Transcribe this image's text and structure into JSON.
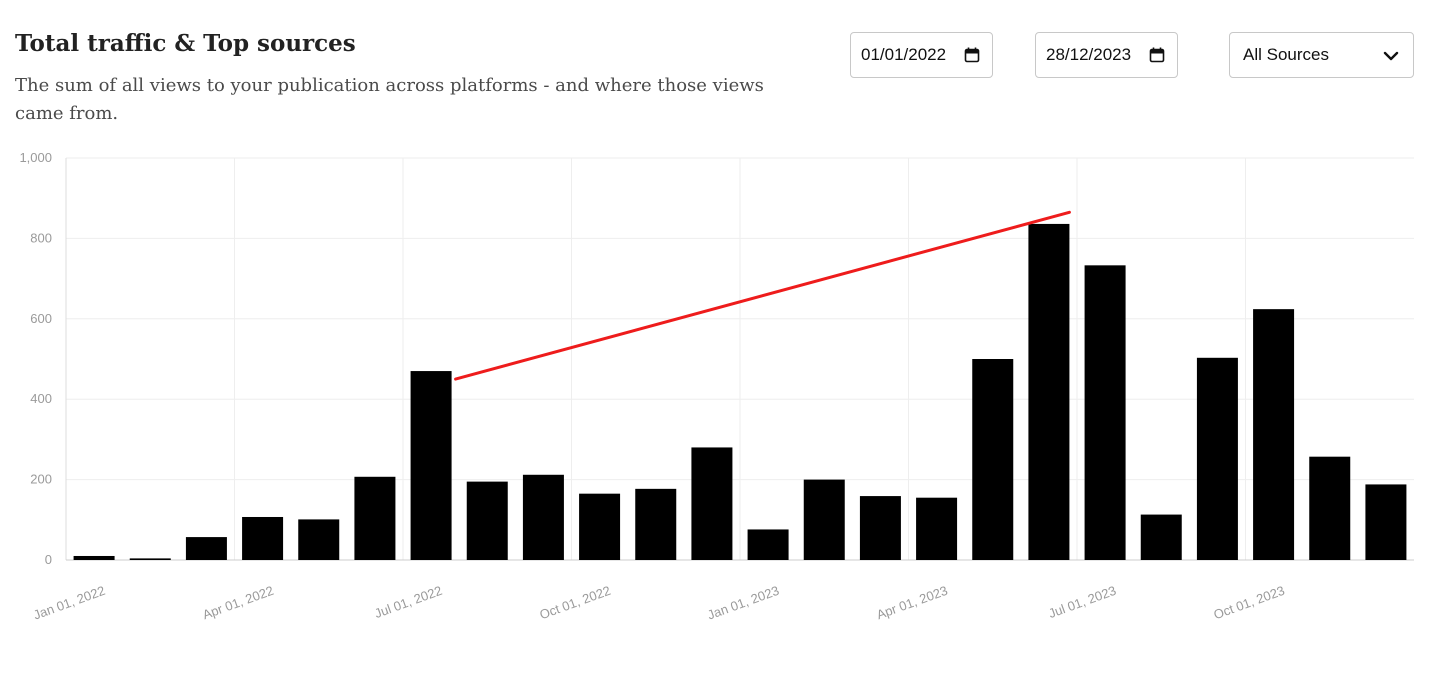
{
  "header": {
    "title": "Total traffic & Top sources",
    "subtitle": "The sum of all views to your publication across platforms - and where those views came from."
  },
  "filters": {
    "start_date": "01/01/2022",
    "end_date": "28/12/2023",
    "source": "All Sources"
  },
  "icons": {
    "calendar": "calendar-icon",
    "dropdown": "chevron-down-icon"
  },
  "colors": {
    "bar": "#000000",
    "annotation_line": "#ee1c1c",
    "grid": "#eeeeee",
    "tick_text": "#9a9a9a"
  },
  "chart_data": {
    "type": "bar",
    "title": "",
    "xlabel": "",
    "ylabel": "",
    "ylim": [
      0,
      1000
    ],
    "yticks": [
      0,
      200,
      400,
      600,
      800,
      1000
    ],
    "ytick_labels": [
      "0",
      "200",
      "400",
      "600",
      "800",
      "1,000"
    ],
    "xtick_labels": [
      "Jan 01, 2022",
      "Apr 01, 2022",
      "Jul 01, 2022",
      "Oct 01, 2022",
      "Jan 01, 2023",
      "Apr 01, 2023",
      "Jul 01, 2023",
      "Oct 01, 2023"
    ],
    "grid": true,
    "legend": "none",
    "categories": [
      "2022-01",
      "2022-02",
      "2022-03",
      "2022-04",
      "2022-05",
      "2022-06",
      "2022-07",
      "2022-08",
      "2022-09",
      "2022-10",
      "2022-11",
      "2022-12",
      "2023-01",
      "2023-02",
      "2023-03",
      "2023-04",
      "2023-05",
      "2023-06",
      "2023-07",
      "2023-08",
      "2023-09",
      "2023-10",
      "2023-11",
      "2023-12"
    ],
    "values": [
      10,
      4,
      57,
      107,
      101,
      207,
      470,
      195,
      212,
      165,
      177,
      280,
      76,
      200,
      159,
      155,
      500,
      836,
      733,
      113,
      503,
      624,
      257,
      188
    ],
    "annotation": {
      "type": "trend-line",
      "from": {
        "category": "2022-07",
        "value": 450
      },
      "to": {
        "category": "2023-06",
        "value": 865
      }
    }
  }
}
